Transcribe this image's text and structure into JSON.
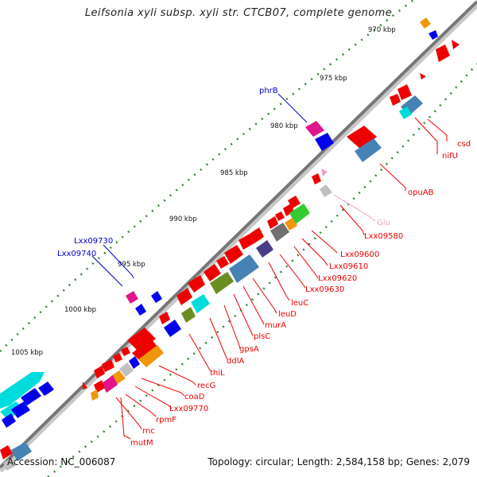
{
  "title": "Leifsonia xyli subsp. xyli str. CTCB07, complete genome",
  "footer": {
    "accession": "Accession: NC_006087",
    "summary": "Topology: circular; Length: 2,584,158 bp; Genes: 2,079"
  },
  "ticks": [
    "970 kbp",
    "975 kbp",
    "980 kbp",
    "985 kbp",
    "990 kbp",
    "995 kbp",
    "1000 kbp",
    "1005 kbp"
  ],
  "colors": {
    "backbone": "#777777",
    "cds": "#ee0000",
    "trna": "#f0a0c8",
    "other_label": "#0000cc"
  },
  "gene_labels": [
    "csd",
    "nifU",
    "opuAB",
    "Glu",
    "Lxx09580",
    "Lxx09600",
    "Lxx09610",
    "Lxx09620",
    "Lxx09630",
    "leuC",
    "leuD",
    "murA",
    "plsC",
    "gpsA",
    "ddlA",
    "thiL",
    "recG",
    "coaD",
    "Lxx09770",
    "rpmF",
    "rnc",
    "mutM",
    "phrB",
    "Lxx09730",
    "Lxx09740"
  ]
}
